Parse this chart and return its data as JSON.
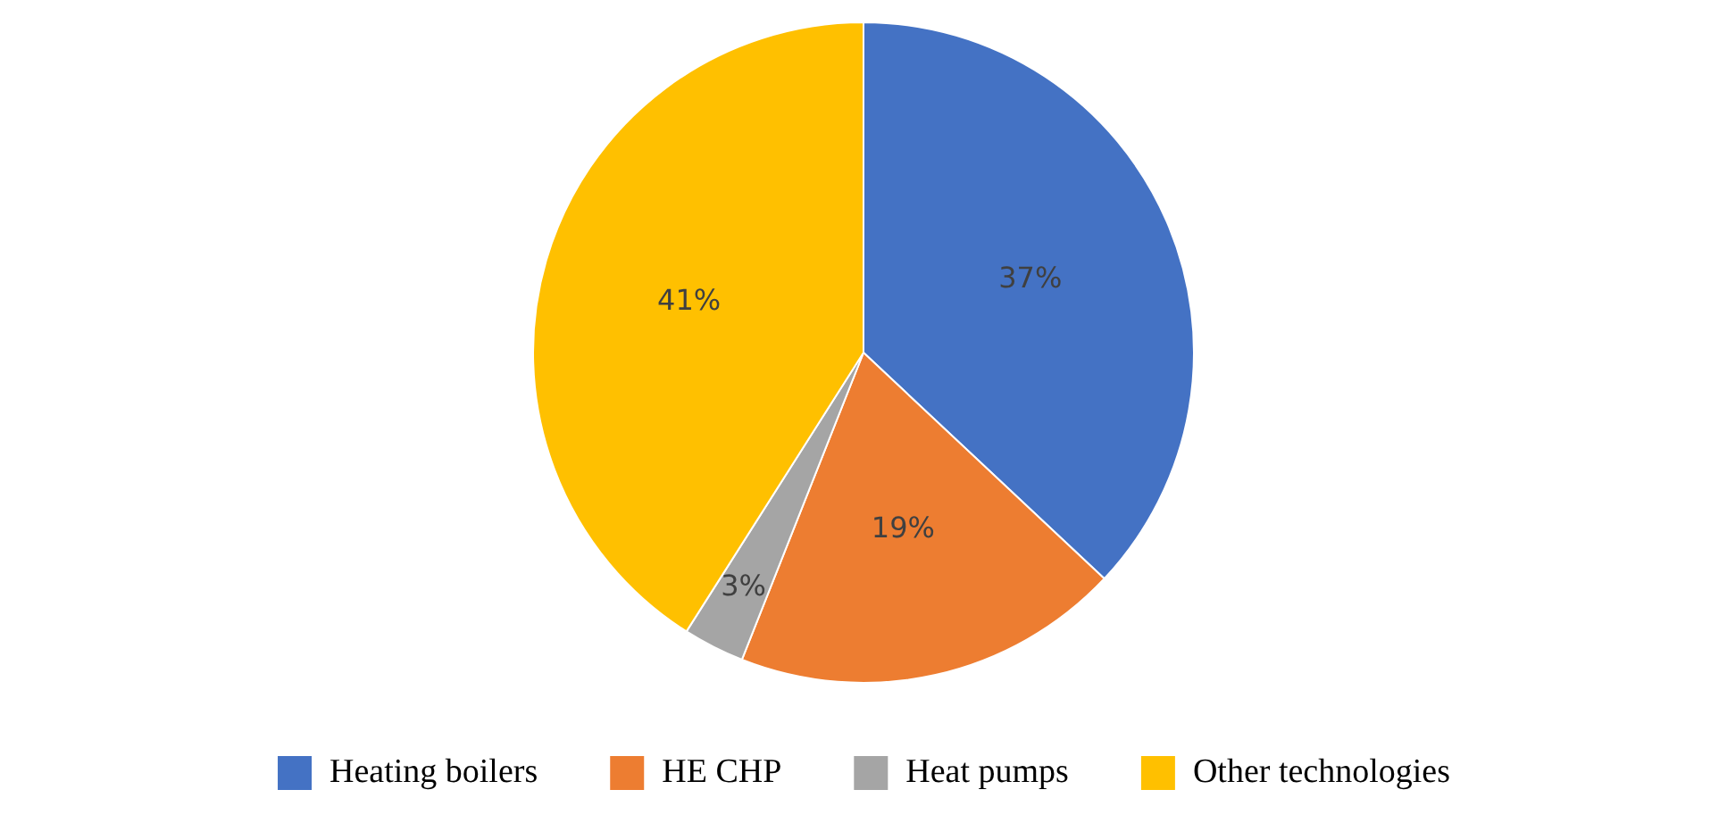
{
  "chart_data": {
    "type": "pie",
    "categories": [
      "Heating boilers",
      "HE CHP",
      "Heat pumps",
      "Other technologies"
    ],
    "values": [
      37,
      19,
      3,
      41
    ],
    "colors": [
      "#4472c4",
      "#ed7d31",
      "#a5a5a5",
      "#ffc000"
    ],
    "value_labels": [
      "37%",
      "19%",
      "3%",
      "41%"
    ],
    "legend": "bottom"
  }
}
